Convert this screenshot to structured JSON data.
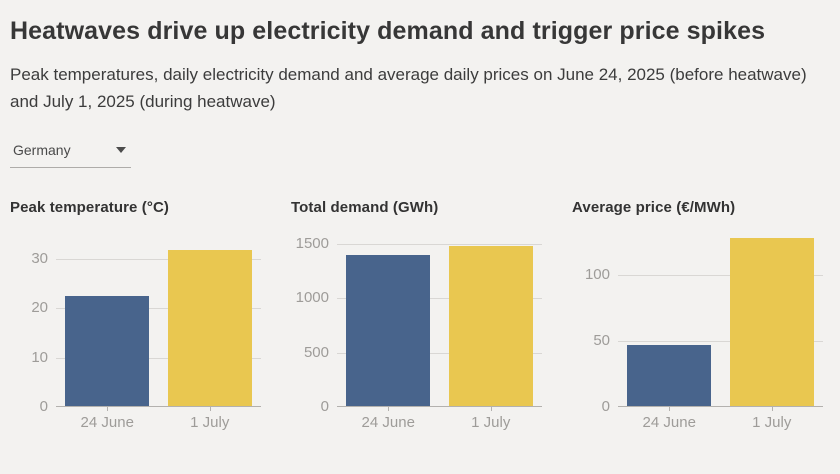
{
  "header": {
    "title": "Heatwaves drive up electricity demand and trigger price spikes",
    "subtitle": "Peak temperatures, daily electricity demand and average daily prices on June 24, 2025 (before heatwave) and July 1, 2025 (during heatwave)",
    "country_selector": {
      "value": "Germany",
      "icon": "chevron-down"
    }
  },
  "colors": {
    "background": "#f3f2f0",
    "bar_before_heatwave": "#48648c",
    "bar_during_heatwave": "#e9c750",
    "gridline": "#d9d7d4",
    "axis_line": "#b3b1ae",
    "tick_label": "#9e9c99"
  },
  "chart_data": [
    {
      "type": "bar",
      "title": "Peak temperature (°C)",
      "categories": [
        "24 June",
        "1 July"
      ],
      "values": [
        22.2,
        31.6
      ],
      "yticks": [
        0,
        10,
        20,
        30
      ],
      "ylim": [
        0,
        35.9
      ],
      "grid": true,
      "legend": "none"
    },
    {
      "type": "bar",
      "title": "Total demand (GWh)",
      "categories": [
        "24 June",
        "1 July"
      ],
      "values": [
        1390,
        1470
      ],
      "yticks": [
        0,
        500,
        1000,
        1500
      ],
      "ylim": [
        0,
        1630
      ],
      "grid": true,
      "legend": "none"
    },
    {
      "type": "bar",
      "title": "Average price (€/MWh)",
      "categories": [
        "24 June",
        "1 July"
      ],
      "values": [
        46,
        127
      ],
      "yticks": [
        0,
        50,
        100
      ],
      "ylim": [
        0,
        134.5
      ],
      "grid": true,
      "legend": "none"
    }
  ]
}
